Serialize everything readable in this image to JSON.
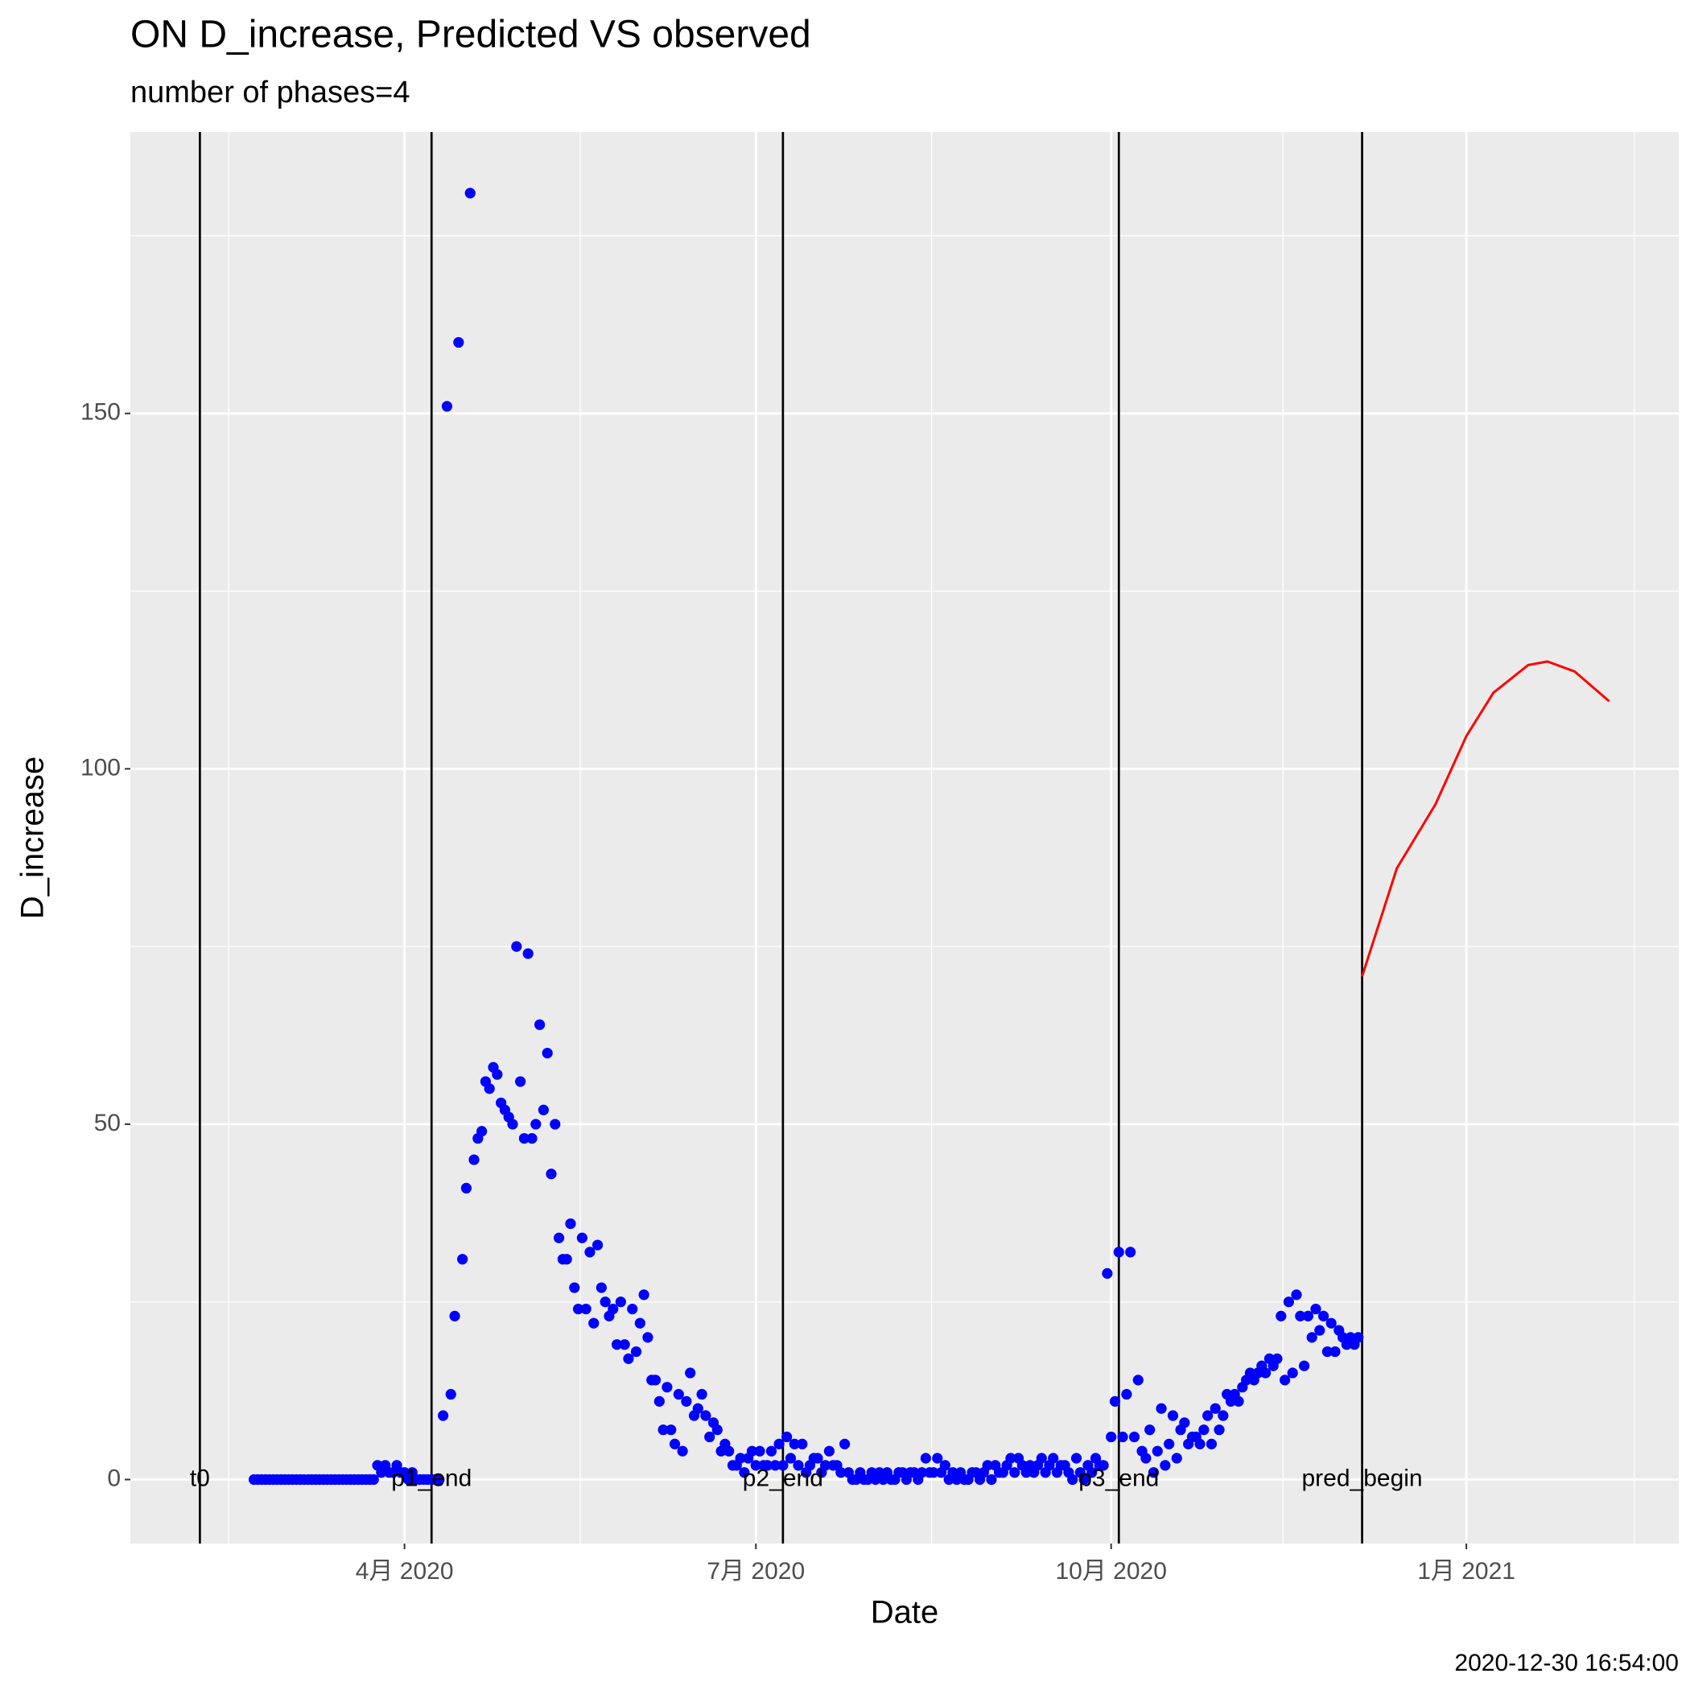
{
  "chart_data": {
    "type": "scatter-line",
    "title": "ON D_increase, Predicted VS observed",
    "subtitle": "number of phases=4",
    "x_label": "Date",
    "y_label": "D_increase",
    "caption": "2020-12-30 16:54:00",
    "xlim": [
      "2020-01-21",
      "2021-02-25"
    ],
    "xticks": [
      {
        "value": "2020-04-01",
        "label": "4月 2020"
      },
      {
        "value": "2020-07-01",
        "label": "7月 2020"
      },
      {
        "value": "2020-10-01",
        "label": "10月 2020"
      },
      {
        "value": "2021-01-01",
        "label": "1月 2021"
      }
    ],
    "ylim": [
      -9,
      189.6
    ],
    "yticks": [
      0,
      50,
      100,
      150
    ],
    "grid": true,
    "vlines": [
      {
        "label": "t0",
        "x": "2020-02-08"
      },
      {
        "label": "p1_end",
        "x": "2020-04-08"
      },
      {
        "label": "p2_end",
        "x": "2020-07-08"
      },
      {
        "label": "p3_end",
        "x": "2020-10-03"
      },
      {
        "label": "pred_begin",
        "x": "2020-12-05"
      }
    ],
    "observed": {
      "color": "#0000ff",
      "x": [
        "2020-02-22",
        "2020-02-23",
        "2020-02-24",
        "2020-02-25",
        "2020-02-26",
        "2020-02-27",
        "2020-02-28",
        "2020-02-29",
        "2020-03-01",
        "2020-03-02",
        "2020-03-03",
        "2020-03-04",
        "2020-03-05",
        "2020-03-06",
        "2020-03-07",
        "2020-03-08",
        "2020-03-09",
        "2020-03-10",
        "2020-03-11",
        "2020-03-12",
        "2020-03-13",
        "2020-03-14",
        "2020-03-15",
        "2020-03-16",
        "2020-03-17",
        "2020-03-18",
        "2020-03-19",
        "2020-03-20",
        "2020-03-21",
        "2020-03-22",
        "2020-03-23",
        "2020-03-24",
        "2020-03-25",
        "2020-03-26",
        "2020-03-27",
        "2020-03-28",
        "2020-03-29",
        "2020-03-30",
        "2020-03-31",
        "2020-04-01",
        "2020-04-02",
        "2020-04-03",
        "2020-04-04",
        "2020-04-05",
        "2020-04-06",
        "2020-04-07",
        "2020-04-08",
        "2020-04-09",
        "2020-04-10",
        "2020-04-11",
        "2020-04-12",
        "2020-04-13",
        "2020-04-14",
        "2020-04-15",
        "2020-04-16",
        "2020-04-17",
        "2020-04-18",
        "2020-04-19",
        "2020-04-20",
        "2020-04-21",
        "2020-04-22",
        "2020-04-23",
        "2020-04-24",
        "2020-04-25",
        "2020-04-26",
        "2020-04-27",
        "2020-04-28",
        "2020-04-29",
        "2020-04-30",
        "2020-05-01",
        "2020-05-02",
        "2020-05-03",
        "2020-05-04",
        "2020-05-05",
        "2020-05-06",
        "2020-05-07",
        "2020-05-08",
        "2020-05-09",
        "2020-05-10",
        "2020-05-11",
        "2020-05-12",
        "2020-05-13",
        "2020-05-14",
        "2020-05-15",
        "2020-05-16",
        "2020-05-17",
        "2020-05-18",
        "2020-05-19",
        "2020-05-20",
        "2020-05-21",
        "2020-05-22",
        "2020-05-23",
        "2020-05-24",
        "2020-05-25",
        "2020-05-26",
        "2020-05-27",
        "2020-05-28",
        "2020-05-29",
        "2020-05-30",
        "2020-05-31",
        "2020-06-01",
        "2020-06-02",
        "2020-06-03",
        "2020-06-04",
        "2020-06-05",
        "2020-06-06",
        "2020-06-07",
        "2020-06-08",
        "2020-06-09",
        "2020-06-10",
        "2020-06-11",
        "2020-06-12",
        "2020-06-13",
        "2020-06-14",
        "2020-06-15",
        "2020-06-16",
        "2020-06-17",
        "2020-06-18",
        "2020-06-19",
        "2020-06-20",
        "2020-06-21",
        "2020-06-22",
        "2020-06-23",
        "2020-06-24",
        "2020-06-25",
        "2020-06-26",
        "2020-06-27",
        "2020-06-28",
        "2020-06-29",
        "2020-06-30",
        "2020-07-01",
        "2020-07-02",
        "2020-07-03",
        "2020-07-04",
        "2020-07-05",
        "2020-07-06",
        "2020-07-07",
        "2020-07-08",
        "2020-07-09",
        "2020-07-10",
        "2020-07-11",
        "2020-07-12",
        "2020-07-13",
        "2020-07-14",
        "2020-07-15",
        "2020-07-16",
        "2020-07-17",
        "2020-07-18",
        "2020-07-19",
        "2020-07-20",
        "2020-07-21",
        "2020-07-22",
        "2020-07-23",
        "2020-07-24",
        "2020-07-25",
        "2020-07-26",
        "2020-07-27",
        "2020-07-28",
        "2020-07-29",
        "2020-07-30",
        "2020-07-31",
        "2020-08-01",
        "2020-08-02",
        "2020-08-03",
        "2020-08-04",
        "2020-08-05",
        "2020-08-06",
        "2020-08-07",
        "2020-08-08",
        "2020-08-09",
        "2020-08-10",
        "2020-08-11",
        "2020-08-12",
        "2020-08-13",
        "2020-08-14",
        "2020-08-15",
        "2020-08-16",
        "2020-08-17",
        "2020-08-18",
        "2020-08-19",
        "2020-08-20",
        "2020-08-21",
        "2020-08-22",
        "2020-08-23",
        "2020-08-24",
        "2020-08-25",
        "2020-08-26",
        "2020-08-27",
        "2020-08-28",
        "2020-08-29",
        "2020-08-30",
        "2020-08-31",
        "2020-09-01",
        "2020-09-02",
        "2020-09-03",
        "2020-09-04",
        "2020-09-05",
        "2020-09-06",
        "2020-09-07",
        "2020-09-08",
        "2020-09-09",
        "2020-09-10",
        "2020-09-11",
        "2020-09-12",
        "2020-09-13",
        "2020-09-14",
        "2020-09-15",
        "2020-09-16",
        "2020-09-17",
        "2020-09-18",
        "2020-09-19",
        "2020-09-20",
        "2020-09-21",
        "2020-09-22",
        "2020-09-23",
        "2020-09-24",
        "2020-09-25",
        "2020-09-26",
        "2020-09-27",
        "2020-09-28",
        "2020-09-29",
        "2020-09-30",
        "2020-10-01",
        "2020-10-02",
        "2020-10-03",
        "2020-10-04",
        "2020-10-05",
        "2020-10-06",
        "2020-10-07",
        "2020-10-08",
        "2020-10-09",
        "2020-10-10",
        "2020-10-11",
        "2020-10-12",
        "2020-10-13",
        "2020-10-14",
        "2020-10-15",
        "2020-10-16",
        "2020-10-17",
        "2020-10-18",
        "2020-10-19",
        "2020-10-20",
        "2020-10-21",
        "2020-10-22",
        "2020-10-23",
        "2020-10-24",
        "2020-10-25",
        "2020-10-26",
        "2020-10-27",
        "2020-10-28",
        "2020-10-29",
        "2020-10-30",
        "2020-10-31",
        "2020-11-01",
        "2020-11-02",
        "2020-11-03",
        "2020-11-04",
        "2020-11-05",
        "2020-11-06",
        "2020-11-07",
        "2020-11-08",
        "2020-11-09",
        "2020-11-10",
        "2020-11-11",
        "2020-11-12",
        "2020-11-13",
        "2020-11-14",
        "2020-11-15",
        "2020-11-16",
        "2020-11-17",
        "2020-11-18",
        "2020-11-19",
        "2020-11-20",
        "2020-11-21",
        "2020-11-22",
        "2020-11-23",
        "2020-11-24",
        "2020-11-25",
        "2020-11-26",
        "2020-11-27",
        "2020-11-28",
        "2020-11-29",
        "2020-11-30",
        "2020-12-01",
        "2020-12-02",
        "2020-12-03",
        "2020-12-04"
      ],
      "values": [
        0,
        0,
        0,
        0,
        0,
        0,
        0,
        0,
        0,
        0,
        0,
        0,
        0,
        0,
        0,
        0,
        0,
        0,
        0,
        0,
        0,
        0,
        0,
        0,
        0,
        0,
        0,
        0,
        0,
        0,
        0,
        0,
        2,
        1,
        2,
        1,
        1,
        2,
        1,
        1,
        0,
        1,
        0,
        0,
        0,
        0,
        0,
        0,
        0,
        9,
        151,
        12,
        23,
        160,
        31,
        41,
        181,
        45,
        48,
        49,
        56,
        55,
        58,
        57,
        53,
        52,
        51,
        50,
        75,
        56,
        48,
        74,
        48,
        50,
        64,
        52,
        60,
        43,
        50,
        34,
        31,
        31,
        36,
        27,
        24,
        34,
        24,
        32,
        22,
        33,
        27,
        25,
        23,
        24,
        19,
        25,
        19,
        17,
        24,
        18,
        22,
        26,
        20,
        14,
        14,
        11,
        7,
        13,
        7,
        5,
        12,
        4,
        11,
        15,
        9,
        10,
        12,
        9,
        6,
        8,
        7,
        4,
        5,
        4,
        2,
        2,
        3,
        1,
        3,
        4,
        2,
        4,
        2,
        2,
        4,
        2,
        5,
        2,
        6,
        3,
        5,
        2,
        5,
        1,
        2,
        3,
        3,
        1,
        2,
        4,
        2,
        2,
        1,
        5,
        1,
        0,
        0,
        1,
        0,
        0,
        1,
        0,
        1,
        0,
        1,
        0,
        0,
        1,
        1,
        0,
        1,
        1,
        0,
        1,
        3,
        1,
        1,
        3,
        1,
        2,
        0,
        1,
        0,
        1,
        0,
        0,
        1,
        1,
        0,
        1,
        2,
        0,
        2,
        1,
        1,
        2,
        3,
        1,
        3,
        2,
        1,
        2,
        1,
        2,
        3,
        1,
        2,
        3,
        1,
        2,
        2,
        1,
        0,
        3,
        1,
        0,
        2,
        1,
        3,
        2,
        2,
        29,
        6,
        11,
        32,
        6,
        12,
        32,
        6,
        14,
        4,
        3,
        7,
        1,
        4,
        10,
        2,
        5,
        9,
        3,
        7,
        8,
        5,
        6,
        6,
        5,
        7,
        9,
        5,
        10,
        7,
        9,
        12,
        11,
        12,
        11,
        13,
        14,
        15,
        14,
        15,
        16,
        15,
        17,
        16,
        17,
        23,
        14,
        25,
        15,
        26,
        23,
        16,
        23,
        20,
        24,
        21,
        23,
        18,
        22,
        18,
        21,
        20,
        19,
        20,
        19,
        20
      ]
    },
    "predicted": {
      "color": "#ff0000",
      "x": [
        "2020-12-05",
        "2020-12-14",
        "2020-12-24",
        "2021-01-01",
        "2021-01-08",
        "2021-01-17",
        "2021-01-22",
        "2021-01-29",
        "2021-02-07"
      ],
      "values": [
        70.8,
        86,
        95,
        104.6,
        110.7,
        114.6,
        115.1,
        113.7,
        109.5
      ]
    }
  }
}
